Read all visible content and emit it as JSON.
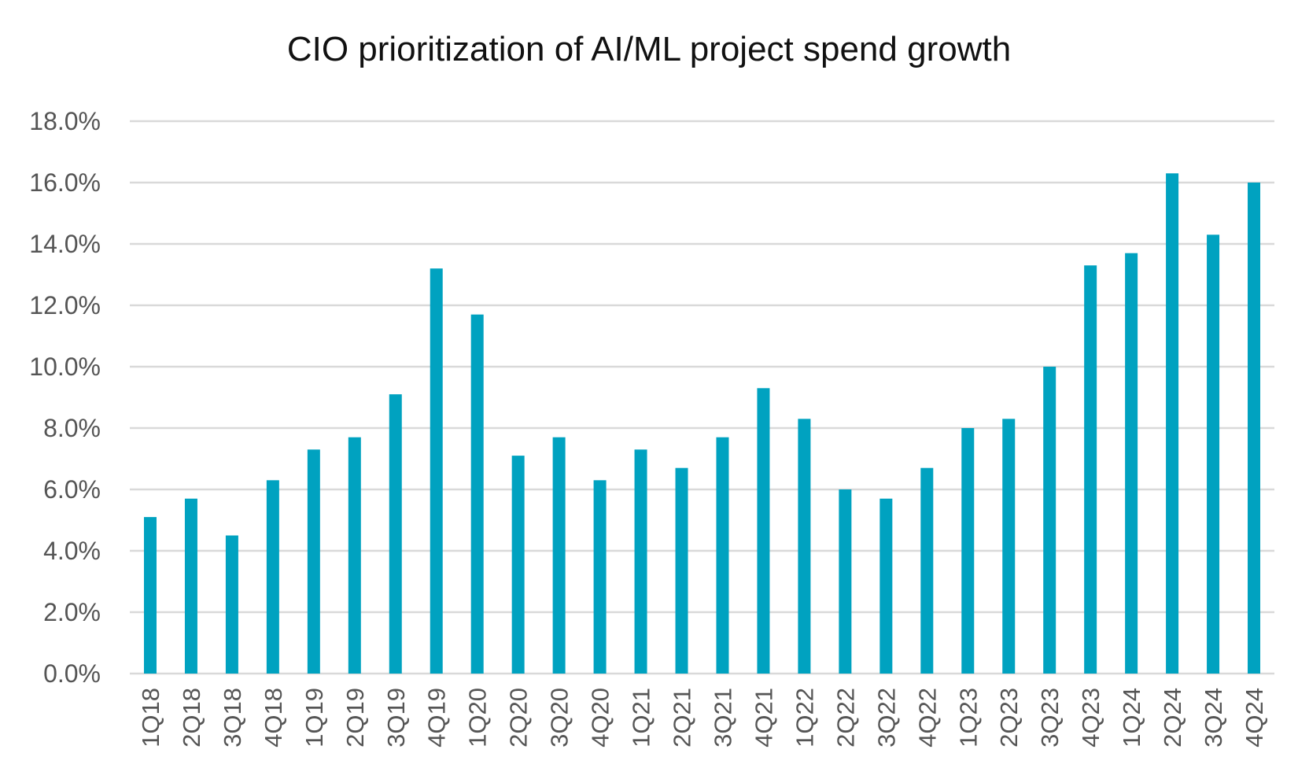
{
  "chart_data": {
    "type": "bar",
    "title": "CIO prioritization of AI/ML project spend growth",
    "xlabel": "",
    "ylabel": "",
    "categories": [
      "1Q18",
      "2Q18",
      "3Q18",
      "4Q18",
      "1Q19",
      "2Q19",
      "3Q19",
      "4Q19",
      "1Q20",
      "2Q20",
      "3Q20",
      "4Q20",
      "1Q21",
      "2Q21",
      "3Q21",
      "4Q21",
      "1Q22",
      "2Q22",
      "3Q22",
      "4Q22",
      "1Q23",
      "2Q23",
      "3Q23",
      "4Q23",
      "1Q24",
      "2Q24",
      "3Q24",
      "4Q24"
    ],
    "values": [
      5.1,
      5.7,
      4.5,
      6.3,
      7.3,
      7.7,
      9.1,
      13.2,
      11.7,
      7.1,
      7.7,
      6.3,
      7.3,
      6.7,
      7.7,
      9.3,
      8.3,
      6.0,
      5.7,
      6.7,
      8.0,
      8.3,
      10.0,
      13.3,
      13.7,
      16.3,
      14.3,
      16.0
    ],
    "ylim": [
      0,
      18
    ],
    "yticks": [
      "0.0%",
      "2.0%",
      "4.0%",
      "6.0%",
      "8.0%",
      "10.0%",
      "12.0%",
      "14.0%",
      "16.0%",
      "18.0%"
    ],
    "grid": true,
    "legend": "none",
    "bar_color": "#00a2c0",
    "grid_color": "#d9d9d9"
  }
}
